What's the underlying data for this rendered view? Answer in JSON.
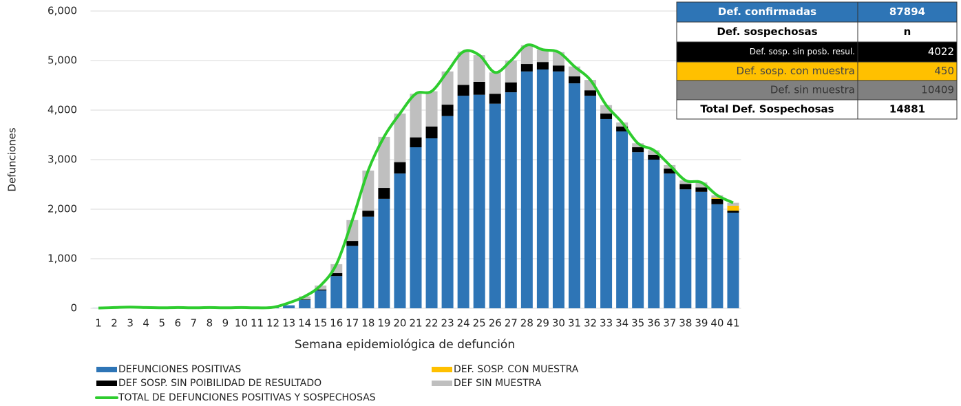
{
  "chart_data": {
    "type": "bar",
    "ylabel": "Defunciones",
    "xlabel": "Semana epidemiológica de defunción",
    "categories": [
      "1",
      "2",
      "3",
      "4",
      "5",
      "6",
      "7",
      "8",
      "9",
      "10",
      "11",
      "12",
      "13",
      "14",
      "15",
      "16",
      "17",
      "18",
      "19",
      "20",
      "21",
      "22",
      "23",
      "24",
      "25",
      "26",
      "27",
      "28",
      "29",
      "30",
      "31",
      "32",
      "33",
      "34",
      "35",
      "36",
      "37",
      "38",
      "39",
      "40",
      "41"
    ],
    "stacked": true,
    "series": [
      {
        "name": "DEFUNCIONES POSITIVAS",
        "color": "#2e75b6",
        "values": [
          3,
          10,
          20,
          10,
          8,
          10,
          8,
          10,
          8,
          10,
          8,
          15,
          60,
          170,
          360,
          650,
          1260,
          1850,
          2210,
          2720,
          3250,
          3430,
          3880,
          4290,
          4310,
          4130,
          4360,
          4780,
          4820,
          4780,
          4540,
          4290,
          3820,
          3570,
          3150,
          3000,
          2720,
          2400,
          2350,
          2100,
          1930
        ]
      },
      {
        "name": "DEF SOSP. SIN POIBILIDAD DE RESULTADO",
        "color": "#000000",
        "values": [
          0,
          0,
          0,
          0,
          0,
          0,
          0,
          0,
          0,
          0,
          0,
          0,
          0,
          10,
          20,
          60,
          100,
          120,
          220,
          230,
          200,
          240,
          230,
          220,
          260,
          200,
          200,
          150,
          150,
          120,
          140,
          110,
          110,
          100,
          100,
          100,
          100,
          110,
          90,
          110,
          40
        ]
      },
      {
        "name": "DEF. SOSP. CON MUESTRA",
        "color": "#ffc000",
        "values": [
          0,
          0,
          0,
          0,
          0,
          0,
          0,
          0,
          0,
          0,
          0,
          0,
          0,
          0,
          0,
          0,
          0,
          0,
          0,
          0,
          0,
          0,
          0,
          0,
          0,
          0,
          0,
          0,
          0,
          0,
          0,
          0,
          0,
          0,
          0,
          0,
          0,
          0,
          0,
          20,
          100
        ]
      },
      {
        "name": "DEF SIN MUESTRA",
        "color": "#bfbfbf",
        "values": [
          0,
          0,
          0,
          0,
          0,
          0,
          0,
          0,
          0,
          0,
          0,
          0,
          0,
          60,
          80,
          180,
          420,
          810,
          1030,
          980,
          880,
          710,
          670,
          670,
          540,
          430,
          440,
          380,
          250,
          270,
          200,
          210,
          170,
          80,
          80,
          90,
          70,
          70,
          100,
          50,
          60
        ]
      },
      {
        "name": "TOTAL DE DEFUNCIONES POSITIVAS Y SOSPECHOSAS",
        "type": "line",
        "color": "#2ecc2e",
        "values": [
          5,
          15,
          25,
          15,
          10,
          15,
          10,
          15,
          10,
          15,
          10,
          20,
          110,
          240,
          460,
          890,
          1780,
          2780,
          3460,
          3930,
          4330,
          4380,
          4780,
          5180,
          5110,
          4760,
          5000,
          5310,
          5220,
          5170,
          4880,
          4610,
          4100,
          3750,
          3330,
          3190,
          2890,
          2580,
          2540,
          2280,
          2130
        ]
      }
    ],
    "ylim": [
      0,
      6000
    ],
    "yticks": [
      0,
      {
        "value": 1000,
        "label": "1,000"
      },
      {
        "value": 2000,
        "label": "2,000"
      },
      {
        "value": 3000,
        "label": "3,000"
      },
      {
        "value": 4000,
        "label": "4,000"
      },
      {
        "value": 5000,
        "label": "5,000"
      },
      {
        "value": 6000,
        "label": "6,000"
      }
    ],
    "grid": true
  },
  "table": {
    "rows": [
      [
        "Def. confirmadas",
        "87894"
      ],
      [
        "Def. sospechosas",
        "n"
      ],
      [
        "Def. sosp. sin posb. resul.",
        "4022"
      ],
      [
        "Def. sosp. con  muestra",
        "450"
      ],
      [
        "Def. sin muestra",
        "10409"
      ],
      [
        "Total Def. Sospechosas",
        "14881"
      ]
    ]
  }
}
